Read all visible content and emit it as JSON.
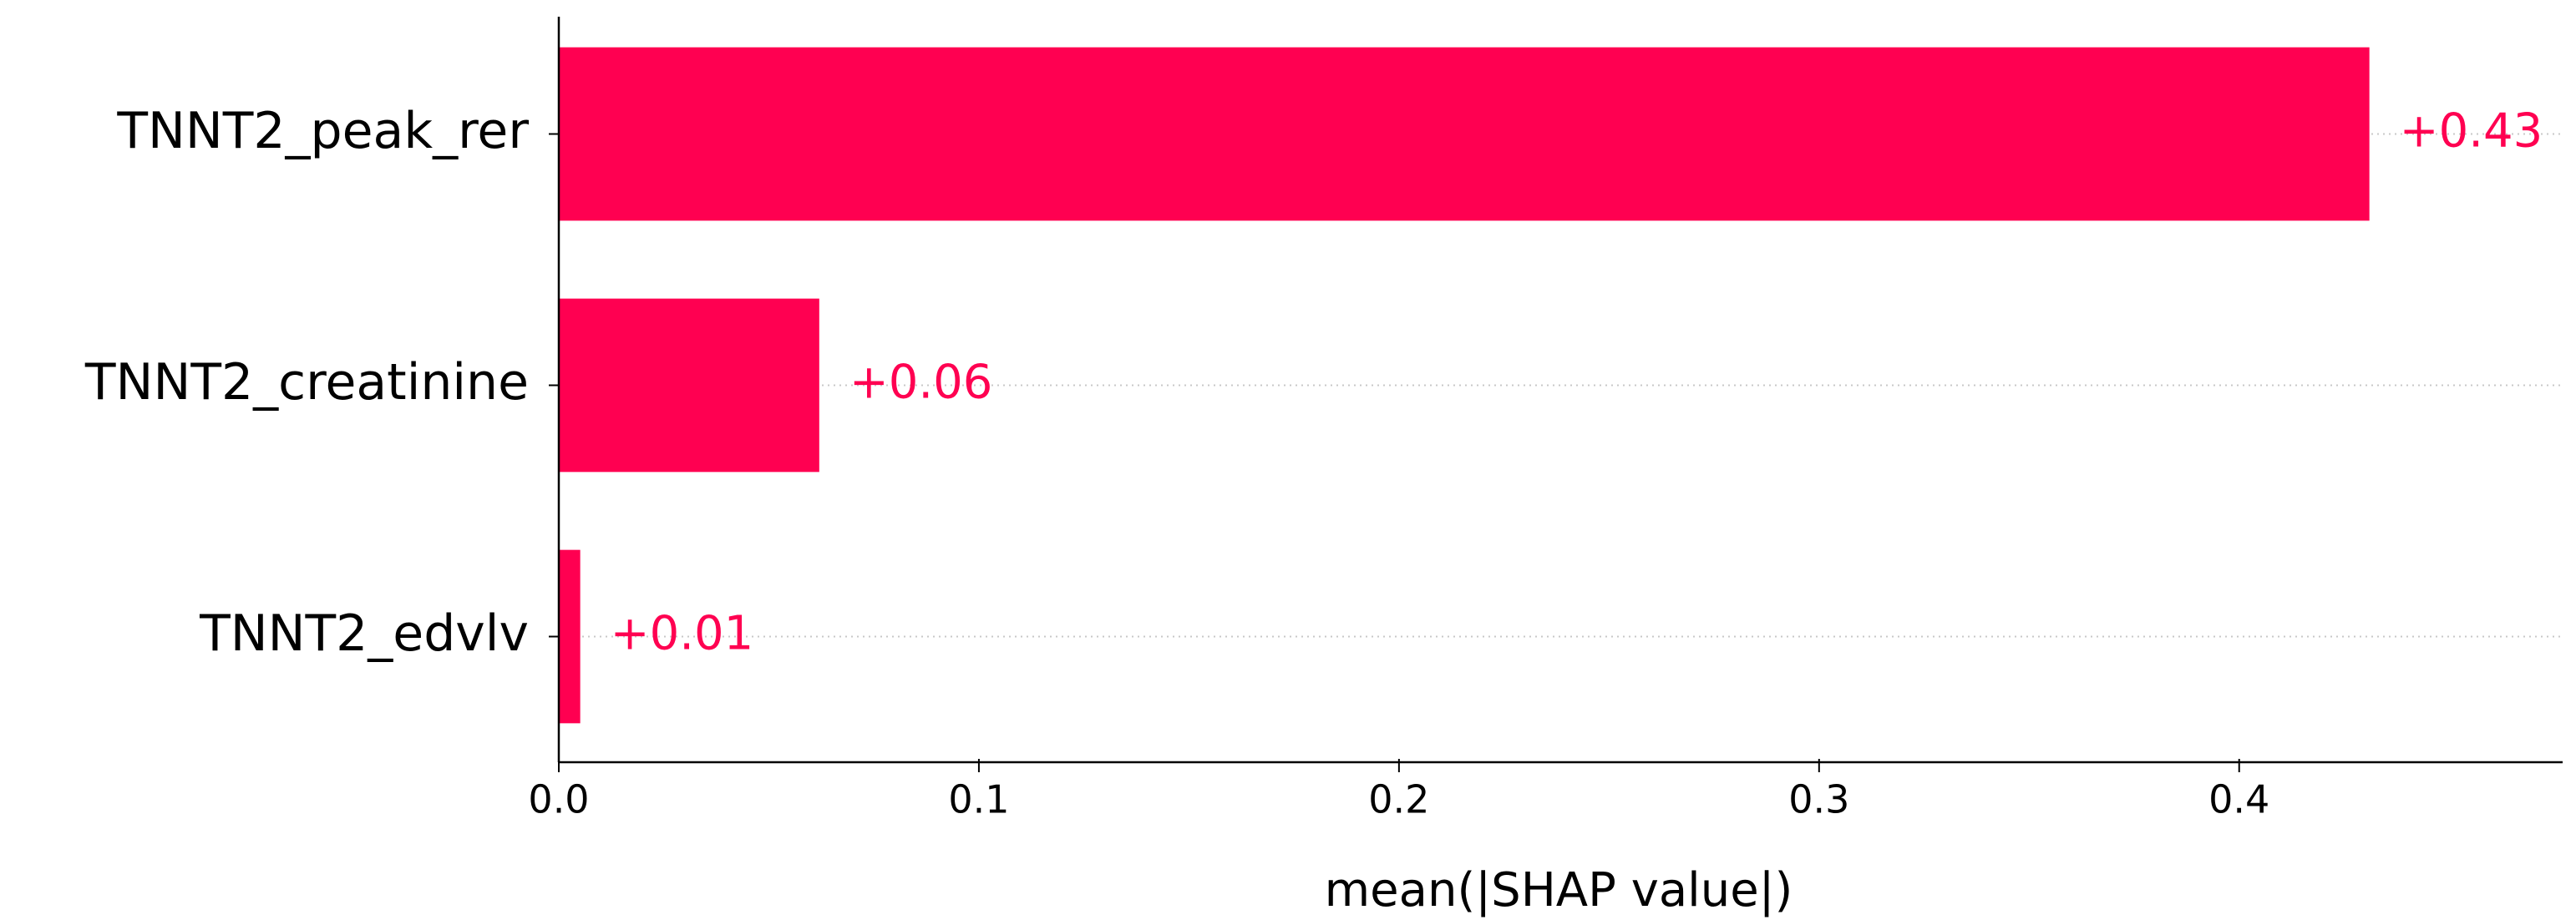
{
  "chart_data": {
    "type": "barh",
    "categories": [
      "TNNT2_peak_rer",
      "TNNT2_creatinine",
      "TNNT2_edvlv"
    ],
    "values": [
      0.431,
      0.062,
      0.0051
    ],
    "value_labels": [
      "+0.43",
      "+0.06",
      "+0.01"
    ],
    "color": "#ff0051",
    "xlabel": "mean(|SHAP value|)",
    "xlim": [
      0,
      0.477
    ],
    "xticks": [
      {
        "value": 0,
        "label": "0.0"
      },
      0.1,
      0.2,
      0.3,
      0.4
    ],
    "grid": true
  }
}
